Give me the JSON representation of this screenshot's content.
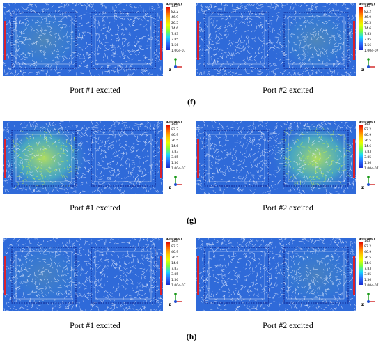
{
  "colors": {
    "background_blue": "#2f6ad9",
    "streak_white": "#e9f0ff",
    "hot_green": "#c7f04a",
    "port_red": "#d8202e",
    "outline_dark": "#0b1f8a"
  },
  "legend": {
    "title": "A/m (log)",
    "ticks": [
      "143",
      "82.2",
      "46.9",
      "26.5",
      "14.6",
      "7.83",
      "3.85",
      "1.56",
      "1.00e-07"
    ],
    "axis_icon": "axes-triad-icon"
  },
  "rows": [
    {
      "label": "(f)",
      "panels": [
        {
          "caption": "Port #1 excited",
          "excited_side": "left",
          "intensity": 0.25
        },
        {
          "caption": "Port #2 excited",
          "excited_side": "right",
          "intensity": 0.25
        }
      ]
    },
    {
      "label": "(g)",
      "panels": [
        {
          "caption": "Port #1 excited",
          "excited_side": "left",
          "intensity": 1.0
        },
        {
          "caption": "Port #2 excited",
          "excited_side": "right",
          "intensity": 1.0
        }
      ]
    },
    {
      "label": "(h)",
      "panels": [
        {
          "caption": "Port #1 excited",
          "excited_side": "left",
          "intensity": 0.2
        },
        {
          "caption": "Port #2 excited",
          "excited_side": "right",
          "intensity": 0.2
        }
      ]
    }
  ]
}
